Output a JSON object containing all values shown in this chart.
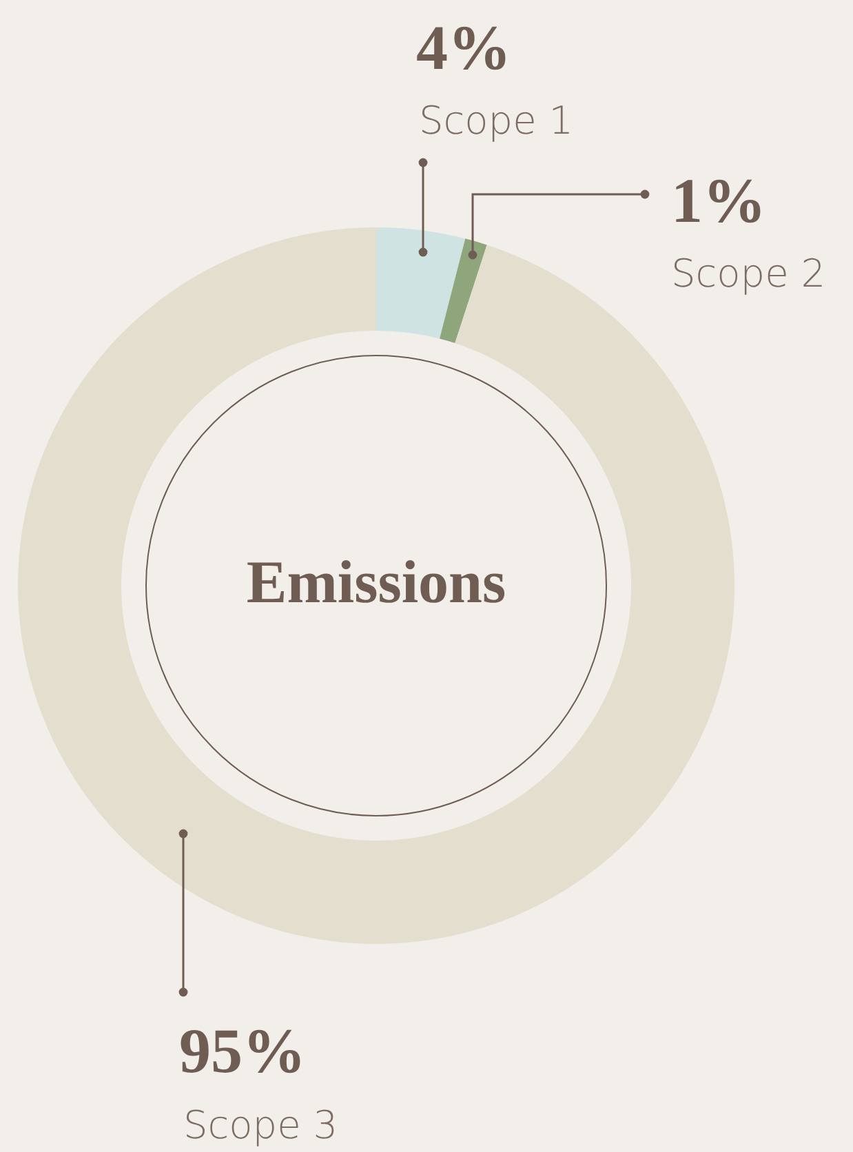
{
  "chart_data": {
    "type": "donut",
    "title": "Emissions",
    "categories": [
      "Scope 1",
      "Scope 2",
      "Scope 3"
    ],
    "values": [
      4,
      1,
      95
    ],
    "colors": [
      "#cfe3e2",
      "#8fa67c",
      "#e4dece"
    ],
    "value_labels": [
      "4%",
      "1%",
      "95%"
    ],
    "legend": false
  }
}
